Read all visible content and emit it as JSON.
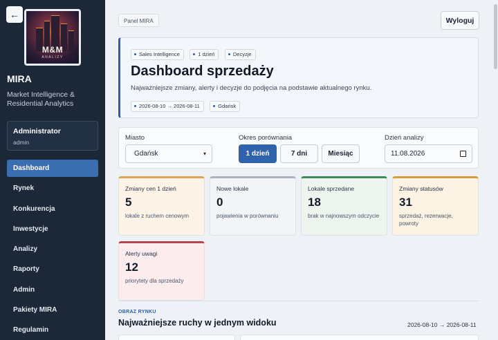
{
  "sidebar": {
    "back_label": "←",
    "logo": {
      "title": "M&M",
      "subtitle": "ANALIZY"
    },
    "brand": "MIRA",
    "tagline": "Market Intelligence & Residential Analytics",
    "user": {
      "name": "Administrator",
      "role": "admin"
    },
    "items": [
      {
        "label": "Dashboard",
        "active": true
      },
      {
        "label": "Rynek"
      },
      {
        "label": "Konkurencja"
      },
      {
        "label": "Inwestycje"
      },
      {
        "label": "Analizy"
      },
      {
        "label": "Raporty"
      },
      {
        "label": "Admin"
      },
      {
        "label": "Pakiety MIRA"
      },
      {
        "label": "Regulamin"
      }
    ]
  },
  "header": {
    "breadcrumb": "Panel MIRA",
    "logout_label": "Wyloguj"
  },
  "hero": {
    "chips_top": [
      "Sales Intelligence",
      "1 dzień",
      "Decyzje"
    ],
    "title": "Dashboard sprzedaży",
    "description": "Najważniejsze zmiany, alerty i decyzje do podjęcia na podstawie aktualnego rynku.",
    "chips_bottom": [
      "2026-08-10 → 2026-08-11",
      "Gdańsk"
    ]
  },
  "filters": {
    "city_label": "Miasto",
    "city_value": "Gdańsk",
    "period_label": "Okres porównania",
    "period_options": [
      "1 dzień",
      "7 dni",
      "Miesiąc"
    ],
    "period_selected": "1 dzień",
    "date_label": "Dzień analizy",
    "date_value": "11.08.2026"
  },
  "kpis": [
    {
      "title": "Zmiany cen 1 dzień",
      "value": "5",
      "desc": "lokale z ruchem cenowym",
      "accent": "#e0a35a",
      "bg": "#fdf3e7"
    },
    {
      "title": "Nowe lokale",
      "value": "0",
      "desc": "pojawienia w porównaniu",
      "accent": "#a9b2be",
      "bg": "#f2f4f7"
    },
    {
      "title": "Lokale sprzedane",
      "value": "18",
      "desc": "brak w najnowszym odczycie",
      "accent": "#3f8a57",
      "bg": "#eef5ef"
    },
    {
      "title": "Zmiany statusów",
      "value": "31",
      "desc": "sprzedaż, rezerwacje, powroty",
      "accent": "#d99a3f",
      "bg": "#fdf3e4"
    },
    {
      "title": "Alerty uwagi",
      "value": "12",
      "desc": "priorytety dla sprzedaży",
      "accent": "#b3474f",
      "bg": "#fcecee"
    }
  ],
  "section": {
    "kicker": "OBRAZ RYNKU",
    "title": "Najważniejsze ruchy w jednym widoku",
    "range": "2026-08-10 → 2026-08-11"
  }
}
